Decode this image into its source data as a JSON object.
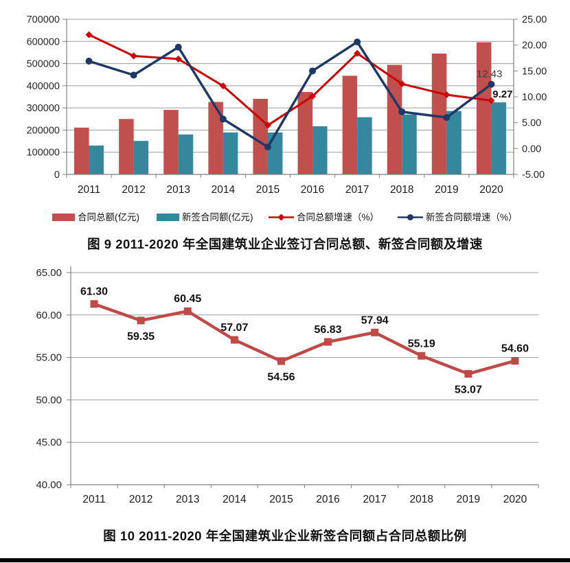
{
  "page": {
    "background": "#FFFFFF",
    "divider_color": "#000000"
  },
  "chart_data": [
    {
      "id": "figure-9",
      "type": "bar+line combo",
      "caption": "图 9  2011-2020 年全国建筑业企业签订合同总额、新签合同额及增速",
      "categories": [
        "2011",
        "2012",
        "2013",
        "2014",
        "2015",
        "2016",
        "2017",
        "2018",
        "2019",
        "2020"
      ],
      "series": [
        {
          "name": "合同总额(亿元)",
          "type": "bar",
          "axis": "left",
          "color": "#C0504D",
          "values": [
            211000,
            250000,
            291000,
            327000,
            341000,
            372000,
            445000,
            494000,
            545000,
            596000
          ]
        },
        {
          "name": "新签合同额(亿元)",
          "type": "bar",
          "axis": "left",
          "color": "#35879E",
          "values": [
            130000,
            151000,
            180000,
            189000,
            189000,
            217000,
            258000,
            270000,
            286000,
            325000
          ]
        },
        {
          "name": "合同总额增速（%）",
          "type": "line",
          "axis": "right",
          "color": "#CC0000",
          "marker": "diamond",
          "values": [
            22.0,
            17.9,
            17.3,
            12.1,
            4.5,
            10.1,
            18.4,
            12.5,
            10.4,
            9.27
          ]
        },
        {
          "name": "新签合同额增速（%）",
          "type": "line",
          "axis": "right",
          "color": "#1F3864",
          "marker": "circle",
          "values": [
            16.9,
            14.2,
            19.6,
            5.7,
            0.3,
            15.0,
            20.6,
            7.1,
            6.0,
            12.43
          ]
        }
      ],
      "left_axis": {
        "min": 0,
        "max": 700000,
        "step": 100000,
        "tick_labels": [
          "0",
          "100000",
          "200000",
          "300000",
          "400000",
          "500000",
          "600000",
          "700000"
        ]
      },
      "right_axis": {
        "min": -5,
        "max": 25,
        "step": 5,
        "tick_labels": [
          "-5.00",
          "0.00",
          "5.00",
          "10.00",
          "15.00",
          "20.00",
          "25.00"
        ]
      },
      "point_labels": [
        {
          "series": 3,
          "index": 9,
          "text": "12.43",
          "bold": false
        },
        {
          "series": 2,
          "index": 9,
          "text": "9.27",
          "bold": true
        }
      ],
      "legend": [
        "合同总额(亿元)",
        "新签合同额(亿元)",
        "合同总额增速（%）",
        "新签合同额增速（%）"
      ],
      "legend_position": "bottom",
      "grid": true
    },
    {
      "id": "figure-10",
      "type": "line",
      "caption": "图 10  2011-2020 年全国建筑业企业新签合同额占合同总额比例",
      "categories": [
        "2011",
        "2012",
        "2013",
        "2014",
        "2015",
        "2016",
        "2017",
        "2018",
        "2019",
        "2020"
      ],
      "values": [
        61.3,
        59.35,
        60.45,
        57.07,
        54.56,
        56.83,
        57.94,
        55.19,
        53.07,
        54.6
      ],
      "data_labels": [
        "61.30",
        "59.35",
        "60.45",
        "57.07",
        "54.56",
        "56.83",
        "57.94",
        "55.19",
        "53.07",
        "54.60"
      ],
      "label_side": [
        "above",
        "below",
        "above",
        "above",
        "below",
        "above",
        "above",
        "above",
        "below",
        "above"
      ],
      "color": "#BE4B48",
      "marker": "square",
      "y_axis": {
        "min": 40,
        "max": 65,
        "step": 5,
        "tick_labels": [
          "40.00",
          "45.00",
          "50.00",
          "55.00",
          "60.00",
          "65.00"
        ]
      },
      "grid": true
    }
  ]
}
